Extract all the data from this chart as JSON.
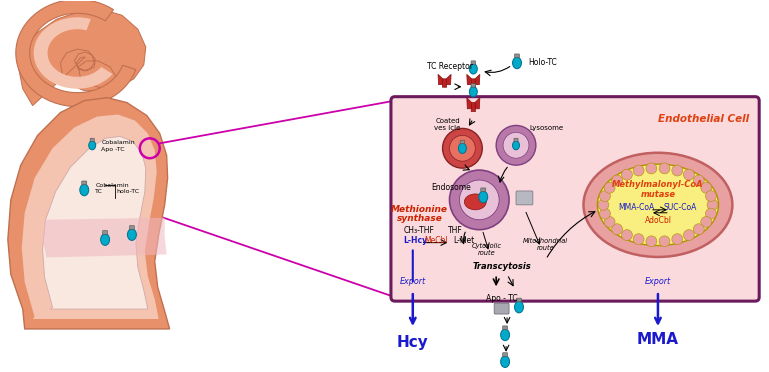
{
  "bg_color": "#ffffff",
  "cell_bg": "#fadadd",
  "cell_border": "#6b1a5e",
  "mito_outer_color": "#e8a0a0",
  "mito_inner_color": "#f8ef80",
  "mito_border_color": "#c06060",
  "intestine_outer": "#e8906a",
  "intestine_inner": "#f5c4b0",
  "lumen_color": "#f8e8e0",
  "pink_highlight": "#f0b8c0",
  "cyan_color": "#00aac8",
  "red_color": "#cc2200",
  "blue_color": "#1a1acc",
  "magenta_color": "#cc00aa",
  "orange_red": "#e04010",
  "endosome_outer": "#b878a8",
  "endosome_inner": "#e8c0d8",
  "purple_border": "#804080",
  "title_text": "Endothelial Cell",
  "tc_receptor_label": "TC Receptor",
  "holo_tc_label": "Holo-TC",
  "coated_vesicle_label": "Coated\nves icle",
  "lysosome_label": "Lysosome",
  "endosome_label": "Endosome",
  "methionine_label": "Methionine",
  "synthase_label": "synthase",
  "ch3_thf_label": "CH₃-THF",
  "thf_label": "THF",
  "l_hcy_label": "L-Hcy",
  "mecbl_label": "MeCbl",
  "l_met_label": "L-Met",
  "cytosolic_label": "Cytosolic\nroute",
  "mitochondrial_label": "Mitochondrial\nroute",
  "transcytosis_label": "Transcytosis",
  "export_label": "Export",
  "hcy_label": "Hcy",
  "mma_label": "MMA",
  "apo_tc_label": "Apo - TC",
  "methylmalonyl_label": "Methylmalonyl-CoA",
  "mutase_label": "mutase",
  "mma_coa_label": "MMA-CoA",
  "suc_coa_label": "SUC-CoA",
  "adocbl_label": "AdoCbl",
  "cobalamin_label": "Cobalamin",
  "apo_tc_int_label": "Apo -TC",
  "cobalamin_tc_label": "Cobalamin",
  "tc_label": "TC",
  "holo_tc_int_label": "holo-TC"
}
